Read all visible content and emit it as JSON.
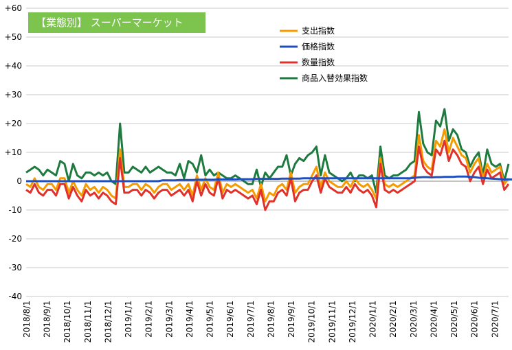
{
  "chart_data": {
    "type": "line",
    "title": "【業態別】 スーパーマーケット",
    "ylim": [
      -40,
      60
    ],
    "yticks": [
      "+60",
      "+50",
      "+40",
      "+30",
      "+20",
      "+10",
      "0",
      "-10",
      "-20",
      "-30",
      "-40"
    ],
    "ytick_values": [
      60,
      50,
      40,
      30,
      20,
      10,
      0,
      -10,
      -20,
      -30,
      -40
    ],
    "x_tick_labels": [
      "2018/8/1",
      "2018/9/1",
      "2018/10/1",
      "2018/11/1",
      "2018/12/1",
      "2019/1/1",
      "2019/2/1",
      "2019/3/1",
      "2019/4/1",
      "2019/5/1",
      "2019/6/1",
      "2019/7/1",
      "2019/8/1",
      "2019/9/1",
      "2019/10/1",
      "2019/11/1",
      "2019/12/1",
      "2020/1/1",
      "2020/2/1",
      "2020/3/1",
      "2020/4/1",
      "2020/5/1",
      "2020/6/1",
      "2020/7/1"
    ],
    "grid": true,
    "legend_position": "top-center",
    "series": [
      {
        "name": "支出指数",
        "color": "#F59B00",
        "values": [
          -1,
          -2,
          1,
          -2,
          -3,
          -1,
          -1,
          -3,
          1,
          1,
          -4,
          0,
          -3,
          -5,
          -1,
          -3,
          -2,
          -4,
          -2,
          -3,
          -5,
          -6,
          11,
          -2,
          -2,
          -1,
          -1,
          -3,
          -1,
          -2,
          -4,
          -2,
          -1,
          -1,
          -3,
          -2,
          -1,
          -3,
          -1,
          -5,
          2,
          -3,
          1,
          -2,
          -3,
          3,
          -4,
          -1,
          -2,
          -1,
          -2,
          -3,
          -4,
          -3,
          -6,
          -1,
          -7,
          -4,
          -5,
          -2,
          -1,
          -3,
          3,
          -4,
          -2,
          -1,
          -1,
          2,
          5,
          -2,
          3,
          0,
          -1,
          -2,
          -2,
          0,
          -2,
          1,
          -1,
          -2,
          -1,
          -3,
          -6,
          8,
          -1,
          -2,
          -1,
          -2,
          -1,
          0,
          1,
          2,
          16,
          7,
          5,
          4,
          14,
          12,
          18,
          10,
          15,
          12,
          9,
          8,
          3,
          6,
          8,
          1,
          6,
          3,
          4,
          5,
          -1,
          1
        ]
      },
      {
        "name": "価格指数",
        "color": "#1F4FBF",
        "values": [
          0,
          0,
          0,
          0,
          0,
          0,
          0,
          0,
          0,
          0,
          0,
          0,
          0,
          0,
          0,
          0,
          0,
          0,
          0,
          0,
          0,
          0,
          0,
          0,
          0,
          0,
          0,
          0,
          0,
          0,
          0,
          0,
          0.3,
          0.3,
          0.3,
          0.3,
          0.4,
          0.4,
          0.4,
          0.4,
          0.5,
          0.5,
          0.5,
          0.5,
          0.5,
          0.6,
          0.6,
          0.6,
          0.6,
          0.6,
          0.7,
          0.7,
          0.7,
          0.7,
          0.8,
          0.8,
          0.8,
          0.8,
          0.8,
          0.8,
          0.9,
          0.9,
          0.9,
          0.9,
          0.9,
          1,
          1,
          1,
          1,
          1,
          1,
          1,
          1,
          1,
          1,
          1,
          1,
          1,
          1,
          1,
          1,
          1,
          1,
          1,
          1,
          1,
          1,
          1,
          1,
          1,
          1,
          1.2,
          1.3,
          1.4,
          1.4,
          1.3,
          1.4,
          1.4,
          1.5,
          1.5,
          1.5,
          1.6,
          1.6,
          1.6,
          1.5,
          1.4,
          1.2,
          1.1,
          1,
          0.9,
          0.8,
          0.7,
          0.6,
          0.6,
          0.6
        ]
      },
      {
        "name": "数量指数",
        "color": "#E0322A",
        "values": [
          -3,
          -4,
          -1,
          -4,
          -5,
          -3,
          -3,
          -5,
          -1,
          -1,
          -6,
          -2,
          -5,
          -7,
          -3,
          -5,
          -4,
          -6,
          -4,
          -5,
          -7,
          -8,
          8,
          -4,
          -4,
          -3,
          -3,
          -5,
          -3,
          -4,
          -6,
          -4,
          -3,
          -3,
          -5,
          -4,
          -3,
          -5,
          -3,
          -7,
          0,
          -5,
          -1,
          -4,
          -5,
          1,
          -6,
          -3,
          -4,
          -3,
          -4,
          -5,
          -6,
          -5,
          -8,
          -3,
          -10,
          -7,
          -7,
          -4,
          -3,
          -5,
          1,
          -7,
          -4,
          -3,
          -3,
          0,
          2,
          -4,
          1,
          -2,
          -3,
          -4,
          -4,
          -2,
          -4,
          -1,
          -3,
          -4,
          -3,
          -5,
          -9,
          6,
          -3,
          -4,
          -3,
          -4,
          -3,
          -2,
          -1,
          0,
          12,
          5,
          3,
          2,
          11,
          9,
          14,
          7,
          11,
          9,
          6,
          5,
          0,
          3,
          5,
          -1,
          4,
          1,
          2,
          3,
          -3,
          -1
        ]
      },
      {
        "name": "商品入替効果指数",
        "color": "#1E7A3E",
        "values": [
          3,
          4,
          5,
          4,
          2,
          4,
          3,
          2,
          7,
          6,
          0,
          6,
          2,
          1,
          3,
          3,
          2,
          3,
          2,
          3,
          0,
          -1,
          20,
          3,
          3,
          5,
          4,
          3,
          5,
          3,
          4,
          5,
          4,
          3,
          3,
          2,
          6,
          1,
          7,
          6,
          3,
          9,
          2,
          4,
          2,
          3,
          2,
          1,
          1,
          2,
          1,
          0,
          -1,
          -1,
          4,
          -2,
          3,
          1,
          3,
          5,
          5,
          9,
          2,
          6,
          8,
          7,
          9,
          10,
          12,
          2,
          9,
          3,
          2,
          1,
          0,
          1,
          3,
          0,
          2,
          2,
          1,
          2,
          -4,
          12,
          2,
          1,
          2,
          2,
          3,
          4,
          6,
          7,
          24,
          13,
          10,
          9,
          21,
          19,
          25,
          14,
          18,
          16,
          11,
          10,
          5,
          8,
          10,
          2,
          11,
          6,
          5,
          6,
          0,
          6
        ]
      }
    ]
  }
}
